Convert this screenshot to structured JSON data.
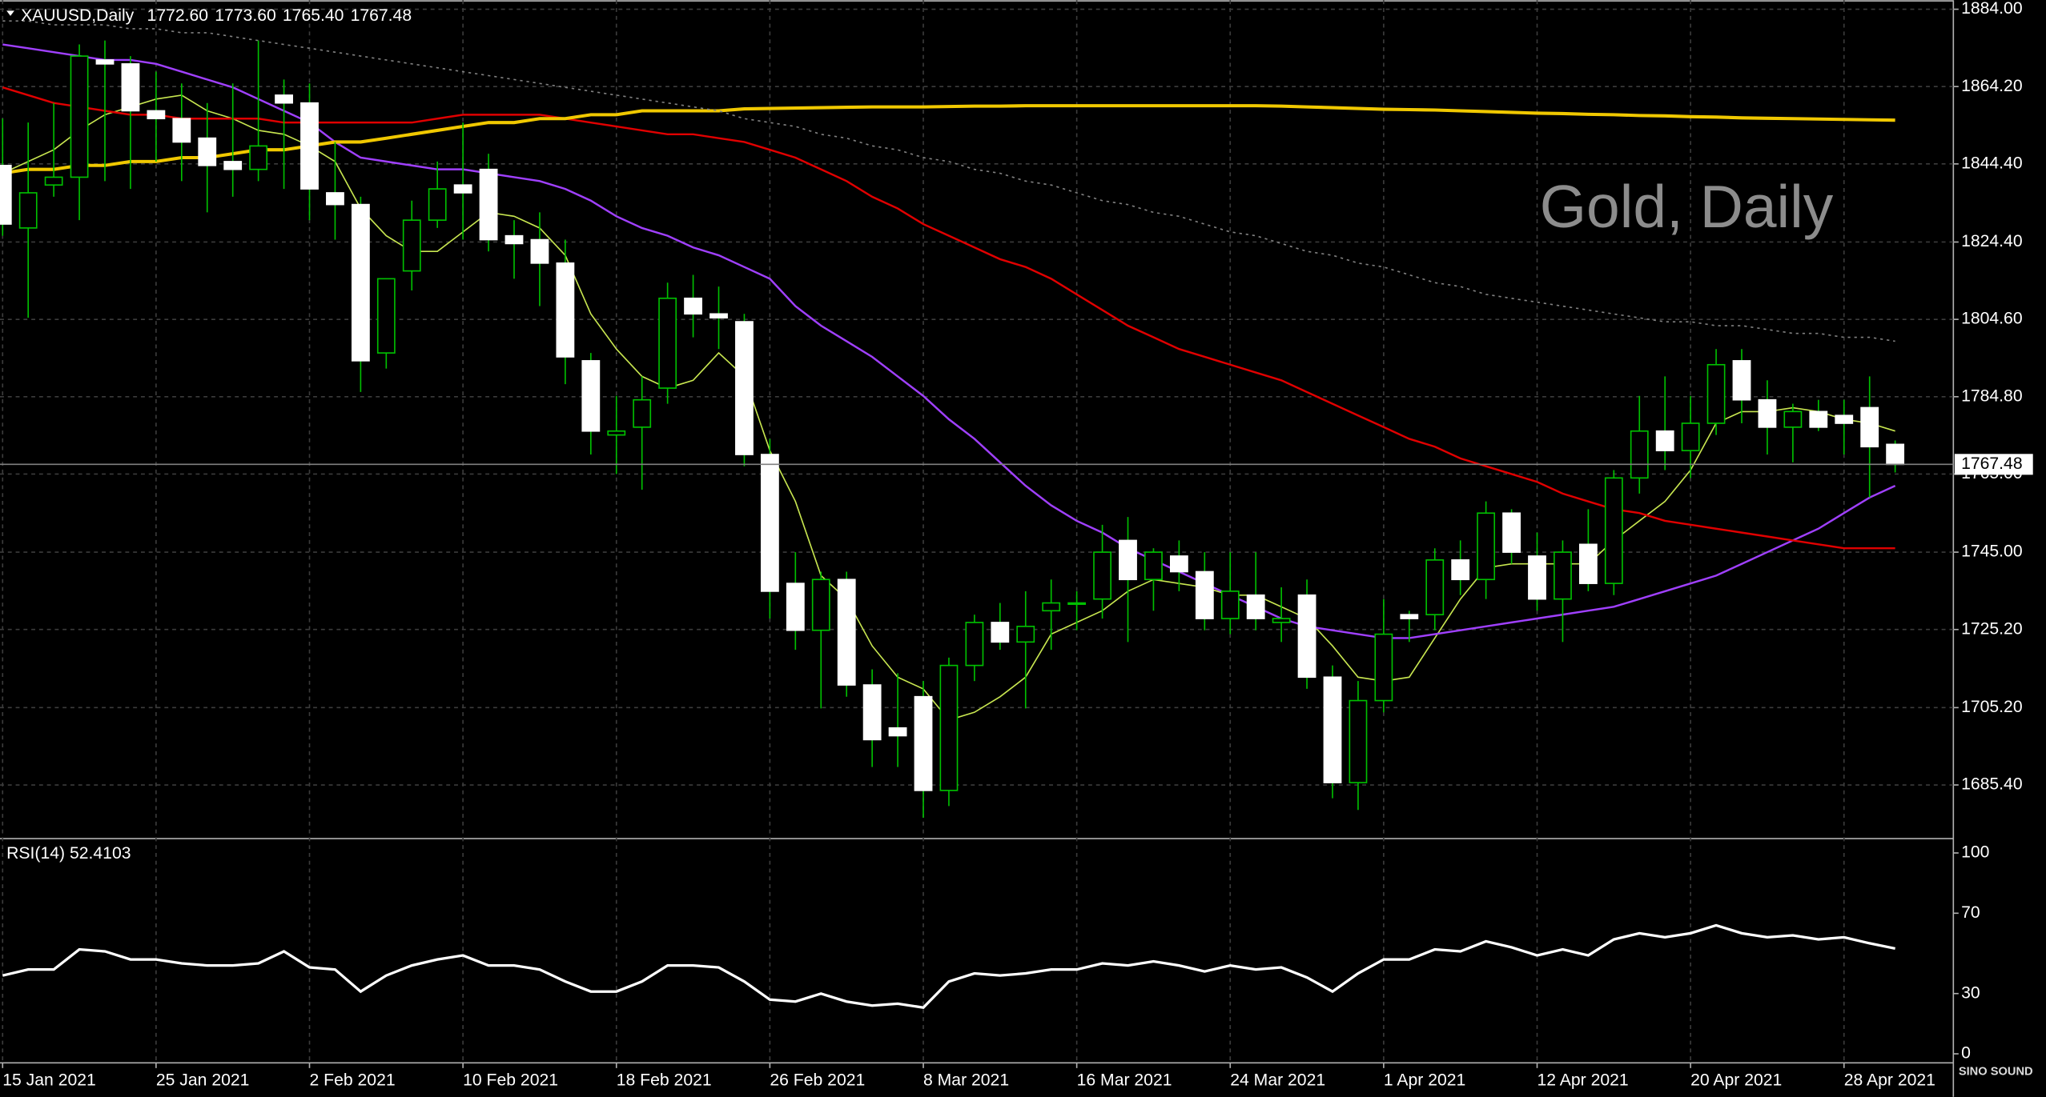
{
  "chart_data": [
    {
      "type": "candlestick",
      "title": "XAUUSD,Daily",
      "ohlc_labels": [
        "1772.60",
        "1773.60",
        "1765.40",
        "1767.48"
      ],
      "watermark": "Gold, Daily",
      "logo": "SINO SOUND",
      "categories": [
        "15 Jan 2021",
        null,
        null,
        null,
        null,
        null,
        "25 Jan 2021",
        null,
        null,
        null,
        null,
        null,
        "2 Feb 2021",
        null,
        null,
        null,
        null,
        null,
        "10 Feb 2021",
        null,
        null,
        null,
        null,
        null,
        "18 Feb 2021",
        null,
        null,
        null,
        null,
        null,
        "26 Feb 2021",
        null,
        null,
        null,
        null,
        null,
        "8 Mar 2021",
        null,
        null,
        null,
        null,
        null,
        "16 Mar 2021",
        null,
        null,
        null,
        null,
        null,
        "24 Mar 2021",
        null,
        null,
        null,
        null,
        null,
        "1 Apr 2021",
        null,
        null,
        null,
        null,
        null,
        "12 Apr 2021",
        null,
        null,
        null,
        null,
        null,
        "20 Apr 2021",
        null,
        null,
        null,
        null,
        null,
        "28 Apr 2021",
        null,
        null
      ],
      "open": [
        1844,
        1828,
        1839,
        1841,
        1871,
        1870,
        1858,
        1856,
        1851,
        1845,
        1843,
        1862,
        1860,
        1837,
        1834,
        1796,
        1817,
        1830,
        1839,
        1843,
        1826,
        1825,
        1819,
        1794,
        1775,
        1777,
        1787,
        1810,
        1806,
        1804,
        1770,
        1737,
        1725,
        1738,
        1711,
        1700,
        1708,
        1684,
        1716,
        1727,
        1722,
        1730,
        1732,
        1733,
        1748,
        1738,
        1744,
        1740,
        1728,
        1734,
        1727,
        1734,
        1713,
        1686,
        1707,
        1729,
        1729,
        1743,
        1738,
        1755,
        1744,
        1733,
        1747,
        1737,
        1764,
        1776,
        1771,
        1778,
        1794,
        1784,
        1777,
        1781,
        1780,
        1782,
        1772.6
      ],
      "high": [
        1856,
        1855,
        1860,
        1875,
        1876,
        1872,
        1868,
        1865,
        1860,
        1865,
        1876,
        1866,
        1865,
        1850,
        1836,
        1815,
        1835,
        1845,
        1855,
        1847,
        1830,
        1832,
        1825,
        1796,
        1785,
        1790,
        1814,
        1816,
        1813,
        1806,
        1774,
        1745,
        1740,
        1740,
        1715,
        1714,
        1712,
        1718,
        1729,
        1732,
        1735,
        1738,
        1735,
        1752,
        1754,
        1746,
        1748,
        1745,
        1745,
        1745,
        1736,
        1738,
        1716,
        1712,
        1733,
        1730,
        1746,
        1748,
        1758,
        1756,
        1750,
        1748,
        1756,
        1766,
        1785,
        1790,
        1785,
        1797,
        1797,
        1789,
        1783,
        1784,
        1784,
        1790,
        1773.6
      ],
      "low": [
        1826,
        1805,
        1836,
        1830,
        1840,
        1838,
        1845,
        1840,
        1832,
        1836,
        1840,
        1838,
        1830,
        1825,
        1786,
        1792,
        1812,
        1828,
        1825,
        1822,
        1815,
        1808,
        1788,
        1770,
        1765,
        1761,
        1783,
        1800,
        1797,
        1767,
        1728,
        1720,
        1705,
        1708,
        1690,
        1690,
        1677,
        1680,
        1712,
        1720,
        1705,
        1720,
        1725,
        1728,
        1722,
        1730,
        1735,
        1725,
        1724,
        1725,
        1722,
        1710,
        1682,
        1679,
        1704,
        1722,
        1725,
        1734,
        1733,
        1742,
        1730,
        1722,
        1735,
        1734,
        1760,
        1766,
        1764,
        1775,
        1778,
        1770,
        1768,
        1776,
        1770,
        1759,
        1765.4
      ],
      "close": [
        1829,
        1837,
        1841,
        1872,
        1870,
        1858,
        1856,
        1850,
        1844,
        1843,
        1849,
        1860,
        1838,
        1834,
        1794,
        1815,
        1830,
        1838,
        1837,
        1825,
        1824,
        1819,
        1795,
        1776,
        1776,
        1784,
        1810,
        1806,
        1805,
        1770,
        1735,
        1725,
        1738,
        1711,
        1697,
        1698,
        1684,
        1716,
        1727,
        1722,
        1726,
        1732,
        1732,
        1745,
        1738,
        1745,
        1740,
        1728,
        1735,
        1728,
        1728,
        1713,
        1686,
        1707,
        1724,
        1728,
        1743,
        1738,
        1755,
        1745,
        1733,
        1745,
        1737,
        1764,
        1776,
        1771,
        1778,
        1793,
        1784,
        1777,
        1781,
        1777,
        1778,
        1772,
        1767.48
      ],
      "up_color": "#000000",
      "up_border": "#00c000",
      "down_color": "#ffffff",
      "wick_color": "#00c000",
      "series": [
        {
          "color": "#c8e650",
          "width": 1,
          "values": [
            1842,
            1845,
            1848,
            1853,
            1857,
            1859,
            1861,
            1862,
            1858,
            1856,
            1853,
            1852,
            1849,
            1845,
            1833,
            1826,
            1822,
            1822,
            1827,
            1832,
            1831,
            1828,
            1821,
            1806,
            1797,
            1790,
            1787,
            1789,
            1796,
            1790,
            1771,
            1758,
            1739,
            1733,
            1721,
            1713,
            1710,
            1702,
            1704,
            1708,
            1713,
            1724,
            1727,
            1730,
            1735,
            1738,
            1737,
            1736,
            1734,
            1734,
            1731,
            1728,
            1721,
            1713,
            1712,
            1713,
            1723,
            1733,
            1741,
            1742,
            1742,
            1742,
            1742,
            1748,
            1753,
            1758,
            1766,
            1778,
            1781,
            1781,
            1782,
            1781,
            1779,
            1778,
            1776
          ]
        },
        {
          "color": "#a040ff",
          "width": 1.5,
          "values": [
            1875,
            1874,
            1873,
            1872,
            1871,
            1871,
            1870,
            1868,
            1866,
            1864,
            1861,
            1858,
            1855,
            1850,
            1846,
            1845,
            1844,
            1843,
            1843,
            1842,
            1841,
            1840,
            1838,
            1835,
            1831,
            1828,
            1826,
            1823,
            1821,
            1818,
            1815,
            1808,
            1803,
            1799,
            1795,
            1790,
            1785,
            1779,
            1774,
            1768,
            1762,
            1757,
            1753,
            1750,
            1746,
            1743,
            1740,
            1737,
            1734,
            1731,
            1728,
            1726,
            1725,
            1724,
            1723,
            1723,
            1724,
            1725,
            1726,
            1727,
            1728,
            1729,
            1730,
            1731,
            1733,
            1735,
            1737,
            1739,
            1742,
            1745,
            1748,
            1751,
            1755,
            1759,
            1762
          ]
        },
        {
          "color": "#e00000",
          "width": 1.5,
          "values": [
            1864,
            1862,
            1860,
            1859,
            1858,
            1857,
            1857,
            1856,
            1856,
            1856,
            1856,
            1855,
            1855,
            1855,
            1855,
            1855,
            1855,
            1856,
            1857,
            1857,
            1857,
            1857,
            1856,
            1855,
            1854,
            1853,
            1852,
            1852,
            1851,
            1850,
            1848,
            1846,
            1843,
            1840,
            1836,
            1833,
            1829,
            1826,
            1823,
            1820,
            1818,
            1815,
            1811,
            1807,
            1803,
            1800,
            1797,
            1795,
            1793,
            1791,
            1789,
            1786,
            1783,
            1780,
            1777,
            1774,
            1772,
            1769,
            1767,
            1765,
            1763,
            1760,
            1758,
            1756,
            1755,
            1753,
            1752,
            1751,
            1750,
            1749,
            1748,
            1747,
            1746,
            1746,
            1746
          ]
        },
        {
          "color": "#f0c800",
          "width": 2.5,
          "values": [
            1842,
            1843,
            1843,
            1844,
            1844,
            1845,
            1845,
            1846,
            1846,
            1847,
            1848,
            1848,
            1849,
            1850,
            1850,
            1851,
            1852,
            1853,
            1854,
            1855,
            1855,
            1856,
            1856,
            1857,
            1857,
            1858,
            1858,
            1858,
            1858,
            1858.5,
            1858.6,
            1858.7,
            1858.8,
            1858.9,
            1859,
            1859,
            1859,
            1859.1,
            1859.2,
            1859.2,
            1859.3,
            1859.3,
            1859.3,
            1859.3,
            1859.3,
            1859.3,
            1859.3,
            1859.3,
            1859.3,
            1859.3,
            1859.2,
            1859,
            1858.8,
            1858.6,
            1858.4,
            1858.3,
            1858.2,
            1858,
            1857.8,
            1857.6,
            1857.4,
            1857.3,
            1857.1,
            1857,
            1856.8,
            1856.7,
            1856.5,
            1856.4,
            1856.2,
            1856.1,
            1856,
            1855.9,
            1855.8,
            1855.7,
            1855.6
          ]
        },
        {
          "color": "#808080",
          "width": 1,
          "dashed": true,
          "values": [
            1881,
            1881,
            1880,
            1880,
            1880,
            1879,
            1879,
            1878,
            1878,
            1877,
            1876,
            1875,
            1874,
            1873,
            1872,
            1871,
            1870,
            1869,
            1868,
            1867,
            1866,
            1865,
            1864,
            1863,
            1862,
            1861,
            1860,
            1859,
            1858,
            1856,
            1855,
            1854,
            1852,
            1851,
            1849,
            1848,
            1846,
            1845,
            1843,
            1842,
            1840,
            1839,
            1837,
            1835,
            1834,
            1832,
            1831,
            1829,
            1827,
            1826,
            1824,
            1822,
            1821,
            1819,
            1818,
            1816,
            1814,
            1813,
            1811,
            1810,
            1809,
            1808,
            1807,
            1806,
            1805,
            1804,
            1804,
            1803,
            1803,
            1802,
            1801,
            1801,
            1800,
            1800,
            1799
          ]
        }
      ],
      "ylim": [
        1672.0,
        1886.3
      ],
      "yticks": [
        {
          "value": 1884.0,
          "label": "1884.00"
        },
        {
          "value": 1864.2,
          "label": "1864.20"
        },
        {
          "value": 1844.4,
          "label": "1844.40"
        },
        {
          "value": 1824.4,
          "label": "1824.40"
        },
        {
          "value": 1804.6,
          "label": "1804.60"
        },
        {
          "value": 1784.8,
          "label": "1784.80"
        },
        {
          "value": 1765.0,
          "label": "1765.00"
        },
        {
          "value": 1745.0,
          "label": "1745.00"
        },
        {
          "value": 1725.2,
          "label": "1725.20"
        },
        {
          "value": 1705.2,
          "label": "1705.20"
        },
        {
          "value": 1685.4,
          "label": "1685.40"
        }
      ],
      "grid": true
    },
    {
      "type": "line",
      "title": "RSI(14) 52.4103",
      "color": "#ffffff",
      "values": [
        39,
        42,
        42,
        52,
        51,
        47,
        47,
        45,
        44,
        44,
        45,
        51,
        43,
        42,
        31,
        39,
        44,
        47,
        49,
        44,
        44,
        42,
        36,
        31,
        31,
        36,
        44,
        44,
        43,
        36,
        27,
        26,
        30,
        26,
        24,
        25,
        23,
        36,
        40,
        39,
        40,
        42,
        42,
        45,
        44,
        46,
        44,
        41,
        44,
        42,
        43,
        38,
        31,
        40,
        47,
        47,
        52,
        51,
        56,
        53,
        49,
        52,
        49,
        57,
        60,
        58,
        60,
        64,
        60,
        58,
        59,
        57,
        58,
        55,
        52.4103
      ],
      "ylim": [
        -4.5,
        106.5
      ],
      "yticks": [
        100,
        70,
        30,
        0
      ],
      "grid": false
    }
  ]
}
